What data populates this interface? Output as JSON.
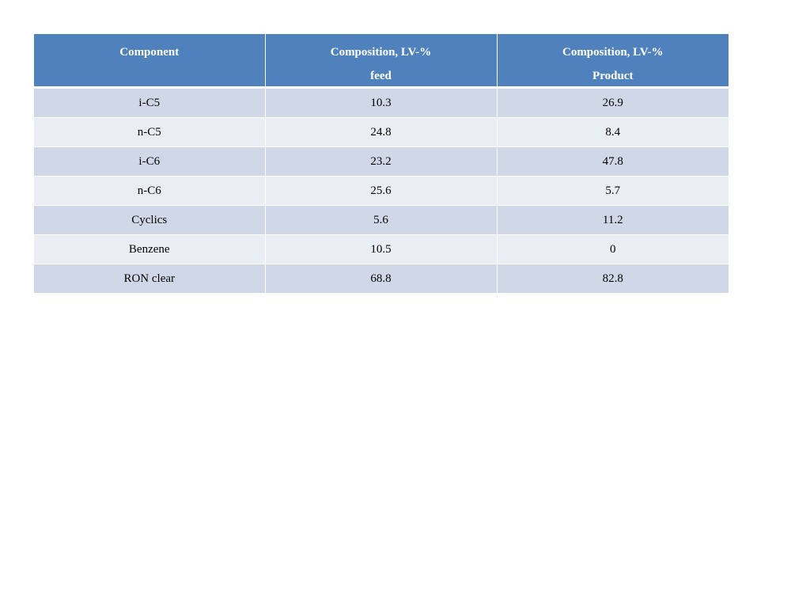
{
  "table": {
    "headers": [
      {
        "line1": "Component",
        "line2": ""
      },
      {
        "line1": "Composition, LV-%",
        "line2": "feed"
      },
      {
        "line1": "Composition, LV-%",
        "line2": "Product"
      }
    ],
    "rows": [
      [
        "i-C5",
        "10.3",
        "26.9"
      ],
      [
        "n-C5",
        "24.8",
        "8.4"
      ],
      [
        "i-C6",
        "23.2",
        "47.8"
      ],
      [
        "n-C6",
        "25.6",
        "5.7"
      ],
      [
        "Cyclics",
        "5.6",
        "11.2"
      ],
      [
        "Benzene",
        "10.5",
        "0"
      ],
      [
        "RON clear",
        "68.8",
        "82.8"
      ]
    ]
  },
  "colors": {
    "header_bg": "#4f81bd",
    "row_odd_bg": "#d0d8e8",
    "row_even_bg": "#e9edf4"
  }
}
